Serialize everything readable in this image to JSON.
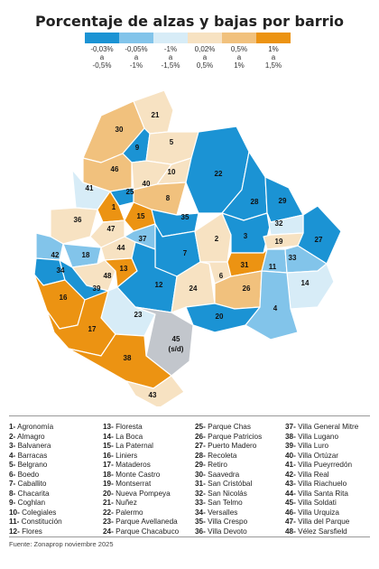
{
  "title": "Porcentaje de alzas y bajas por barrio",
  "legend": [
    {
      "label": "-0,03%\na\n-0,5%",
      "color": "#1b93d4"
    },
    {
      "label": "-0,05%\na\n-1%",
      "color": "#82c4ea"
    },
    {
      "label": "-1%\na\n-1,5%",
      "color": "#d7ecf7"
    },
    {
      "label": "0,02%\na\n0,5%",
      "color": "#f7e2c2"
    },
    {
      "label": "0,5%\na\n1%",
      "color": "#f1c17d"
    },
    {
      "label": "1%\na\n1,5%",
      "color": "#ec9312"
    }
  ],
  "no_data_color": "#c2c6cc",
  "map_labels": [
    {
      "id": "1"
    },
    {
      "id": "2"
    },
    {
      "id": "3"
    },
    {
      "id": "4"
    },
    {
      "id": "5"
    },
    {
      "id": "6"
    },
    {
      "id": "7"
    },
    {
      "id": "8"
    },
    {
      "id": "9"
    },
    {
      "id": "10"
    },
    {
      "id": "11"
    },
    {
      "id": "12"
    },
    {
      "id": "13"
    },
    {
      "id": "14"
    },
    {
      "id": "15"
    },
    {
      "id": "16"
    },
    {
      "id": "17"
    },
    {
      "id": "18"
    },
    {
      "id": "19"
    },
    {
      "id": "20"
    },
    {
      "id": "21"
    },
    {
      "id": "22"
    },
    {
      "id": "23"
    },
    {
      "id": "24"
    },
    {
      "id": "25"
    },
    {
      "id": "26"
    },
    {
      "id": "27"
    },
    {
      "id": "28"
    },
    {
      "id": "29"
    },
    {
      "id": "30"
    },
    {
      "id": "31"
    },
    {
      "id": "32"
    },
    {
      "id": "33"
    },
    {
      "id": "34"
    },
    {
      "id": "35"
    },
    {
      "id": "36"
    },
    {
      "id": "37"
    },
    {
      "id": "38"
    },
    {
      "id": "39"
    },
    {
      "id": "40"
    },
    {
      "id": "41"
    },
    {
      "id": "42"
    },
    {
      "id": "43"
    },
    {
      "id": "44"
    },
    {
      "id": "45"
    },
    {
      "id": "46"
    },
    {
      "id": "47"
    },
    {
      "id": "48"
    }
  ],
  "no_data_note": "(s/d)",
  "barrios": [
    [
      "1-",
      "Agronomía"
    ],
    [
      "2-",
      "Almagro"
    ],
    [
      "3-",
      "Balvanera"
    ],
    [
      "4-",
      "Barracas"
    ],
    [
      "5-",
      "Belgrano"
    ],
    [
      "6-",
      "Boedo"
    ],
    [
      "7-",
      "Caballito"
    ],
    [
      "8-",
      "Chacarita"
    ],
    [
      "9-",
      "Coghlan"
    ],
    [
      "10-",
      "Colegiales"
    ],
    [
      "11-",
      "Constitución"
    ],
    [
      "12-",
      "Flores"
    ],
    [
      "13-",
      "Floresta"
    ],
    [
      "14-",
      "La Boca"
    ],
    [
      "15-",
      "La Paternal"
    ],
    [
      "16-",
      "Liniers"
    ],
    [
      "17-",
      "Mataderos"
    ],
    [
      "18-",
      "Monte Castro"
    ],
    [
      "19-",
      "Montserrat"
    ],
    [
      "20-",
      "Nueva Pompeya"
    ],
    [
      "21-",
      "Nuñez"
    ],
    [
      "22-",
      "Palermo"
    ],
    [
      "23-",
      "Parque Avellaneda"
    ],
    [
      "24-",
      "Parque Chacabuco"
    ],
    [
      "25-",
      "Parque Chas"
    ],
    [
      "26-",
      "Parque Patricios"
    ],
    [
      "27-",
      "Puerto Madero"
    ],
    [
      "28-",
      "Recoleta"
    ],
    [
      "29-",
      "Retiro"
    ],
    [
      "30-",
      "Saavedra"
    ],
    [
      "31-",
      "San Cristóbal"
    ],
    [
      "32-",
      "San Nicolás"
    ],
    [
      "33-",
      "San Telmo"
    ],
    [
      "34-",
      "Versalles"
    ],
    [
      "35-",
      "Villa Crespo"
    ],
    [
      "36-",
      "Villa Devoto"
    ],
    [
      "37-",
      "Villa General Mitre"
    ],
    [
      "38-",
      "Villa Lugano"
    ],
    [
      "39-",
      "Villa Luro"
    ],
    [
      "40-",
      "Villa Ortúzar"
    ],
    [
      "41-",
      "Villa Pueyrredón"
    ],
    [
      "42-",
      "Villa Real"
    ],
    [
      "43-",
      "Villa Riachuelo"
    ],
    [
      "44-",
      "Villa Santa Rita"
    ],
    [
      "45-",
      "Villa Soldati"
    ],
    [
      "46-",
      "Villa Urquiza"
    ],
    [
      "47-",
      "Villa del Parque"
    ],
    [
      "48-",
      "Vélez Sarsfield"
    ]
  ],
  "source": "Fuente: Zonaprop noviembre 2025"
}
